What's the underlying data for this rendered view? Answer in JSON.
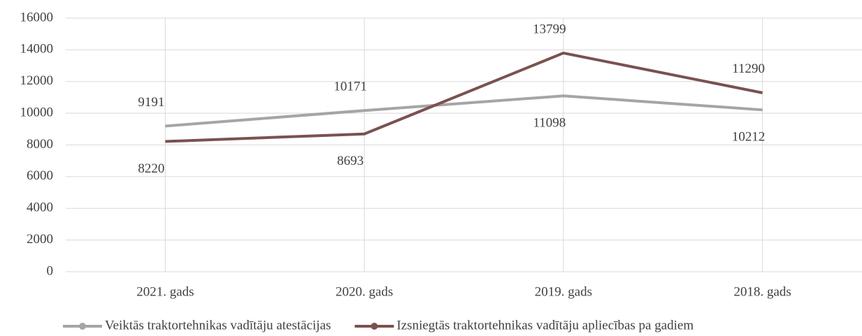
{
  "chart_data": {
    "type": "line",
    "categories": [
      "2021. gads",
      "2020. gads",
      "2019. gads",
      "2018. gads"
    ],
    "series": [
      {
        "name": "Veiktās traktortehnikas vadītāju atestācijas",
        "color": "#a5a5a5",
        "values": [
          9191,
          10171,
          11098,
          10212
        ]
      },
      {
        "name": "Izsniegtās traktortehnikas vadītāju apliecības pa gadiem",
        "color": "#7b5150",
        "values": [
          8220,
          8693,
          13799,
          11290
        ]
      }
    ],
    "ylim": [
      0,
      16000
    ],
    "yticks": [
      0,
      2000,
      4000,
      6000,
      8000,
      10000,
      12000,
      14000,
      16000
    ],
    "grid": true,
    "legend": "bottom"
  }
}
